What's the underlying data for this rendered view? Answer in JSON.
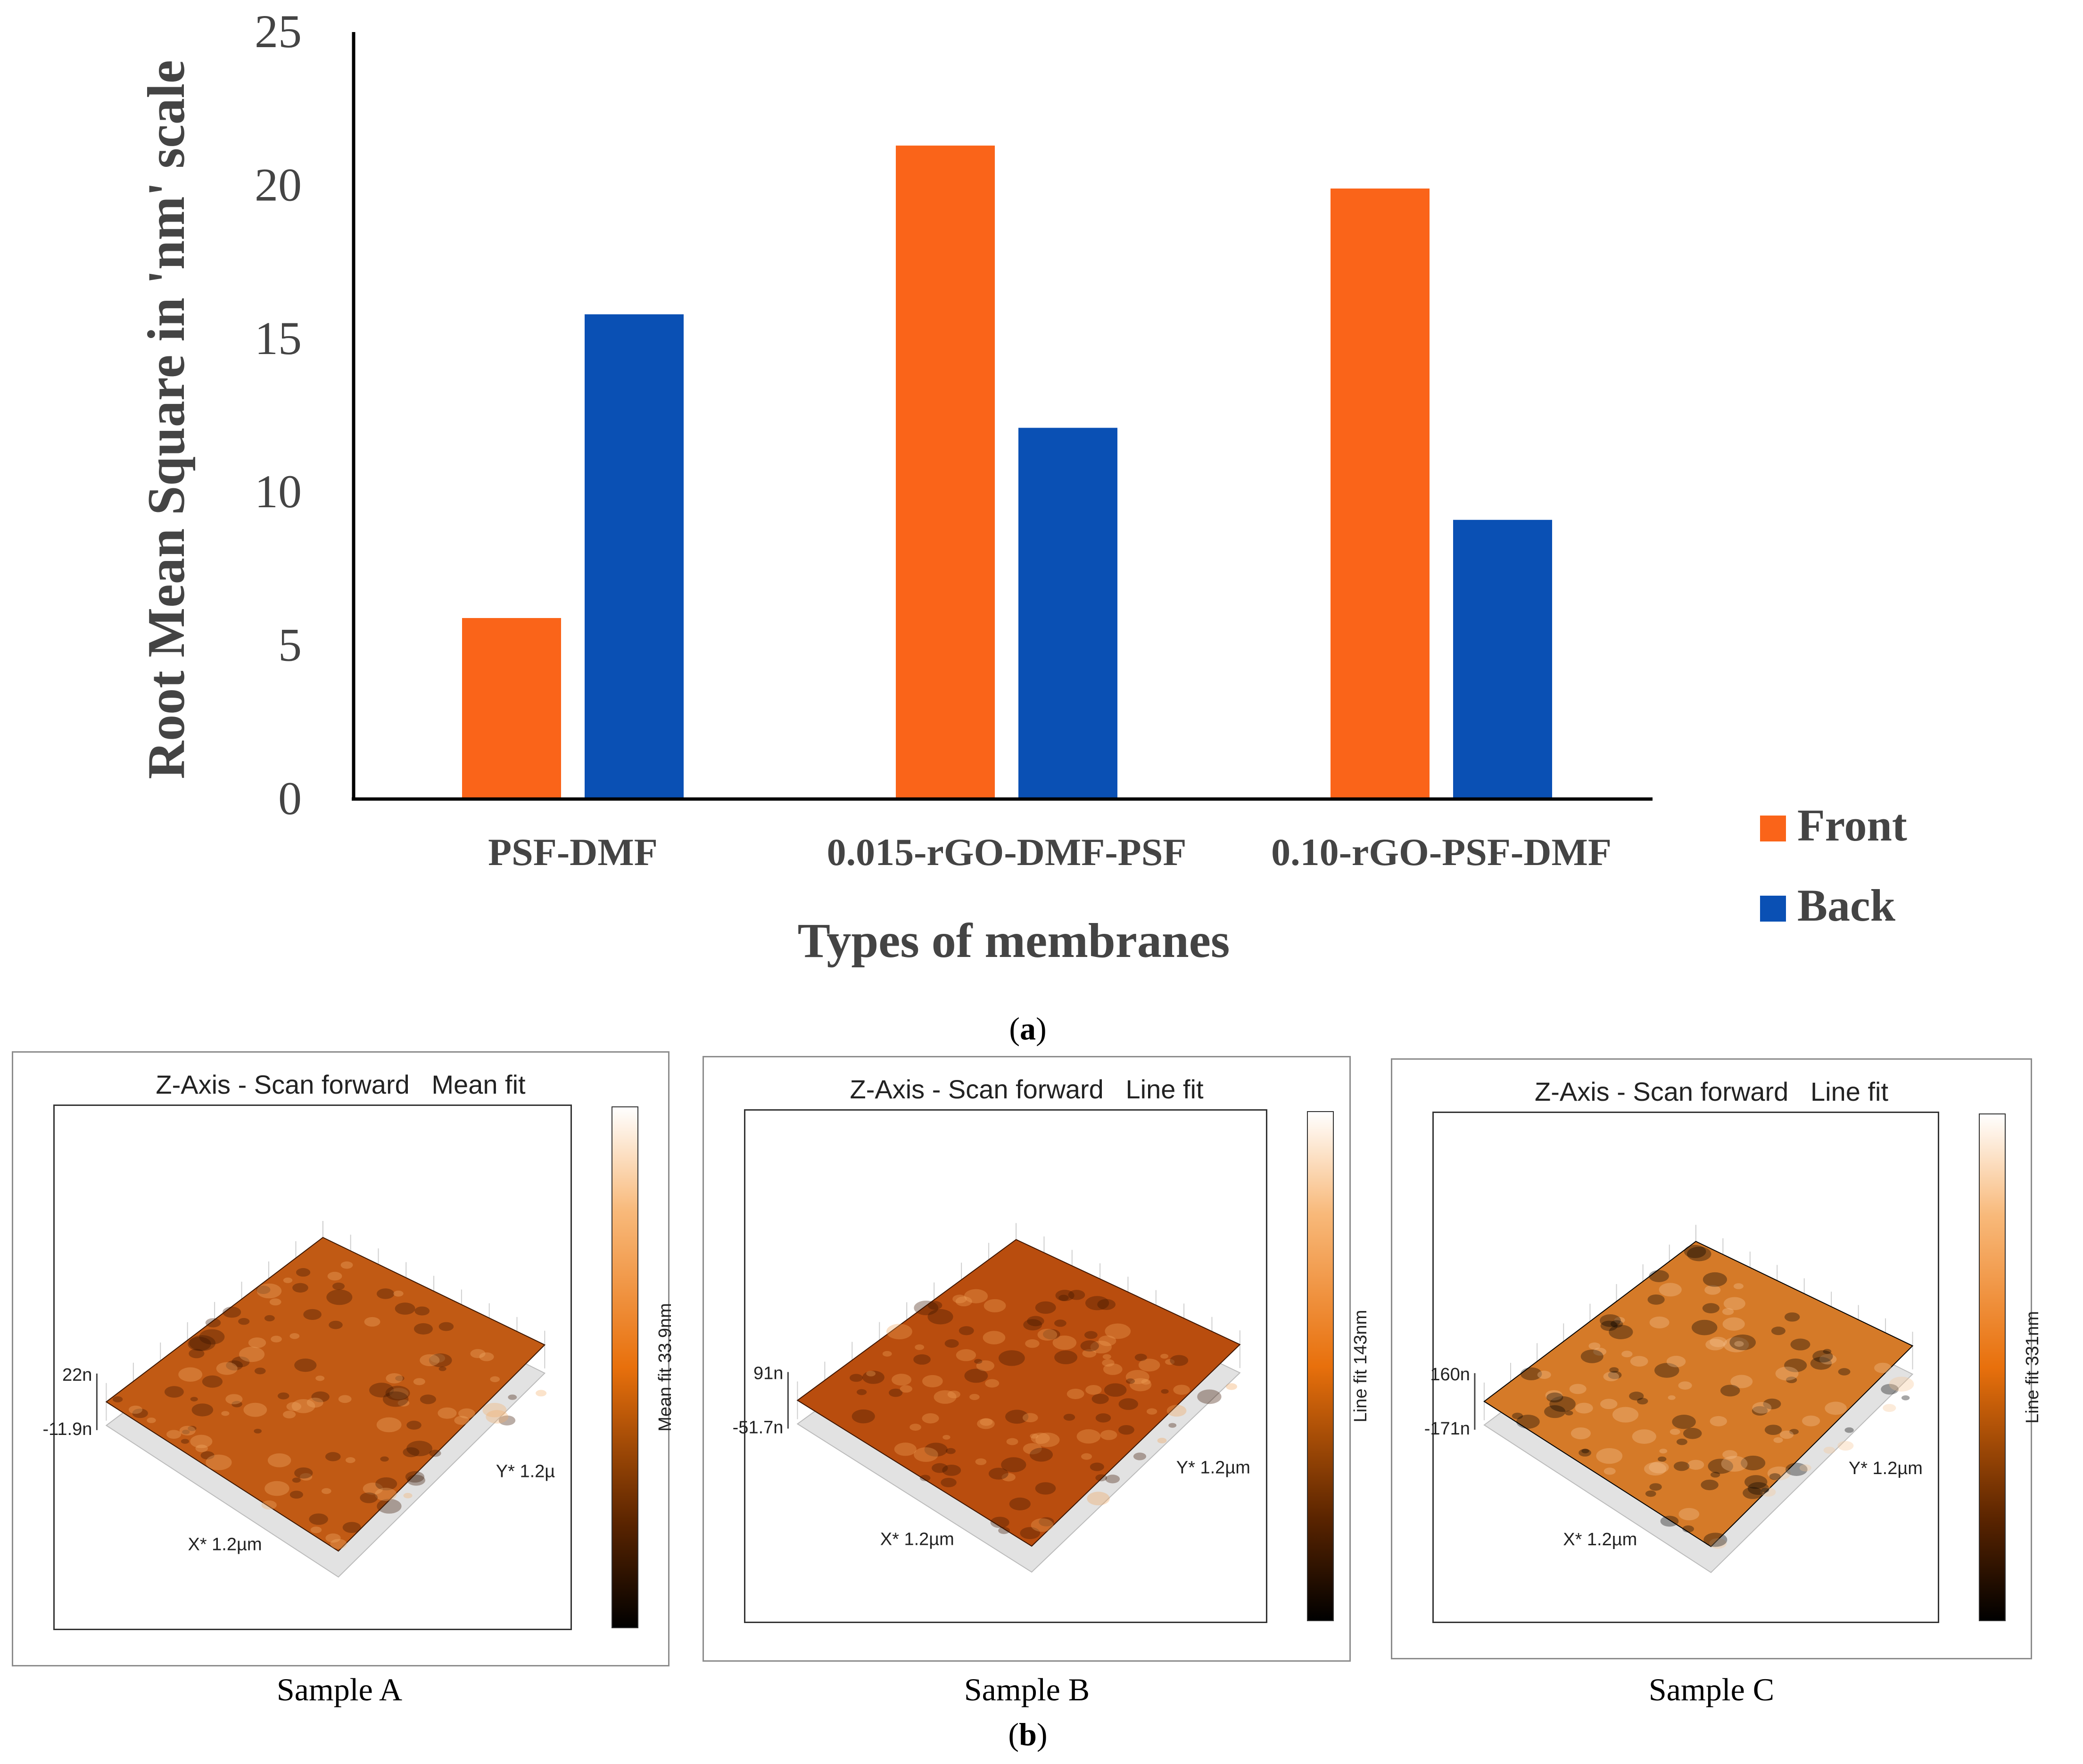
{
  "chart_data": {
    "type": "bar",
    "ylabel": "Root Mean Square in 'nm' scale",
    "xlabel": "Types of membranes",
    "ylim": [
      0,
      25
    ],
    "yticks": [
      0,
      5,
      10,
      15,
      20,
      25
    ],
    "categories": [
      "PSF-DMF",
      "0.015-rGO-DMF-PSF",
      "0.10-rGO-PSF-DMF"
    ],
    "series": [
      {
        "name": "Front",
        "color": "#fa6419",
        "values": [
          5.9,
          21.3,
          19.9
        ]
      },
      {
        "name": "Back",
        "color": "#0a50b4",
        "values": [
          15.8,
          12.1,
          9.1
        ]
      }
    ],
    "legend_position": "right"
  },
  "captions": {
    "a": "(a)",
    "b": "(b)",
    "a_letter": "a",
    "b_letter": "b"
  },
  "panels": [
    {
      "title": "Z-Axis - Scan forward   Mean fit",
      "z_top": "22n",
      "z_bottom": "-11.9n",
      "x_label": "X* 1.2µm",
      "y_label": "Y* 1.2µ",
      "colorbar_label": "Mean fit 33.9nm",
      "sample": "Sample A"
    },
    {
      "title": "Z-Axis - Scan forward   Line fit",
      "z_top": "91n",
      "z_bottom": "-51.7n",
      "x_label": "X* 1.2µm",
      "y_label": "Y* 1.2µm",
      "colorbar_label": "Line fit 143nm",
      "sample": "Sample B"
    },
    {
      "title": "Z-Axis - Scan forward   Line fit",
      "z_top": "160n",
      "z_bottom": "-171n",
      "x_label": "X* 1.2µm",
      "y_label": "Y* 1.2µm",
      "colorbar_label": "Line fit 331nm",
      "sample": "Sample C"
    }
  ]
}
